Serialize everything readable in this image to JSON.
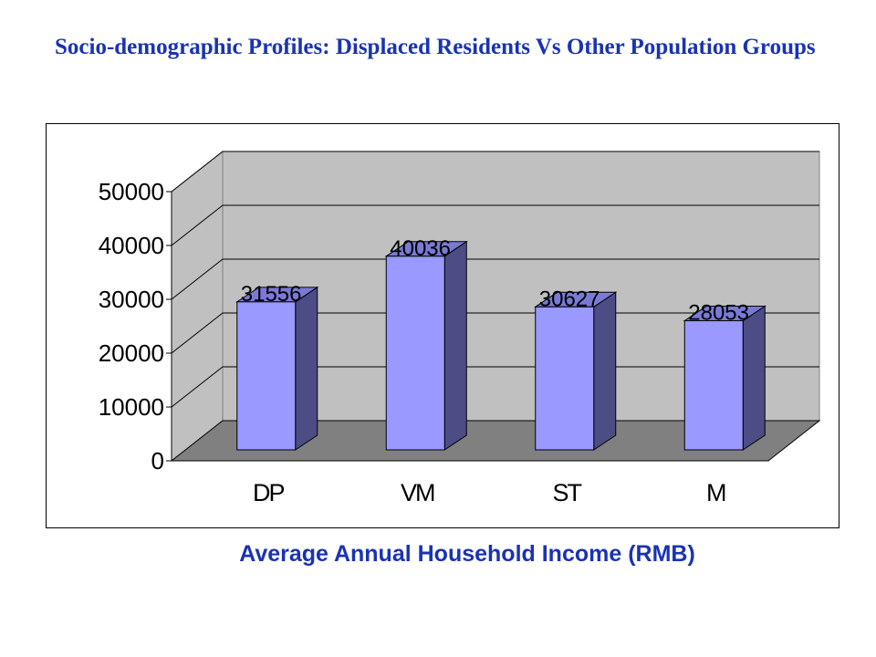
{
  "title": "Socio-demographic Profiles: Displaced Residents Vs Other Population Groups",
  "caption": "Average Annual Household Income (RMB)",
  "colors": {
    "title": "#1a33b3",
    "bar_front": "#9999ff",
    "bar_side": "#4d4d85",
    "bar_top": "#7a7ad6",
    "back_wall": "#c0c0c0",
    "side_wall": "#c0c0c0",
    "floor": "#808080"
  },
  "chart_data": {
    "type": "bar",
    "style": "3d",
    "categories": [
      "DP",
      "VM",
      "ST",
      "M"
    ],
    "values": [
      31556,
      40036,
      30627,
      28053
    ],
    "ylim": [
      0,
      50000
    ],
    "yticks": [
      "0",
      "10000",
      "20000",
      "30000",
      "40000",
      "50000"
    ],
    "data_labels": [
      "31556",
      "40036",
      "30627",
      "28053"
    ],
    "grid": true,
    "legend": "none"
  }
}
